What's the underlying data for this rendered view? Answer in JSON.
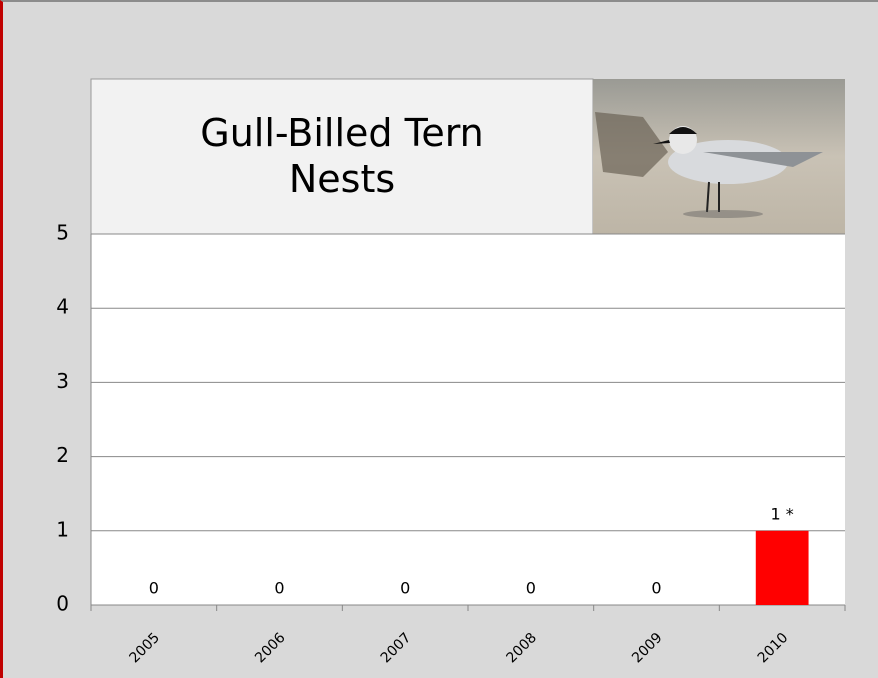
{
  "chart_data": {
    "type": "bar",
    "title": "Gull-Billed Tern Nests",
    "categories": [
      "2005",
      "2006",
      "2007",
      "2008",
      "2009",
      "2010"
    ],
    "values": [
      0,
      0,
      0,
      0,
      0,
      1
    ],
    "value_labels": [
      "0",
      "0",
      "0",
      "0",
      "0",
      "1 *"
    ],
    "color": "#ff0000",
    "ylim": [
      0,
      5
    ],
    "yticks": [
      0,
      1,
      2,
      3,
      4,
      5
    ],
    "grid": true
  }
}
